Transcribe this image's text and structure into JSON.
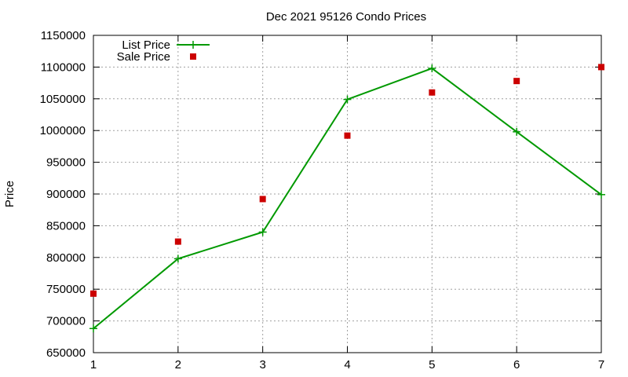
{
  "chart_data": {
    "type": "line",
    "title": "Dec 2021 95126 Condo Prices",
    "xlabel": "",
    "ylabel": "Price",
    "xlim": [
      1,
      7
    ],
    "ylim": [
      650000,
      1150000
    ],
    "x_ticks": [
      1,
      2,
      3,
      4,
      5,
      6,
      7
    ],
    "y_ticks": [
      650000,
      700000,
      750000,
      800000,
      850000,
      900000,
      950000,
      1000000,
      1050000,
      1100000,
      1150000
    ],
    "grid": true,
    "legend_position": "top-left",
    "x": [
      1,
      2,
      3,
      4,
      5,
      6,
      7
    ],
    "series": [
      {
        "name": "List Price",
        "style": "linespoints",
        "color": "#009900",
        "marker": "plus",
        "values": [
          688000,
          798000,
          840000,
          1049000,
          1098000,
          998000,
          899000
        ]
      },
      {
        "name": "Sale Price",
        "style": "points",
        "color": "#cc0000",
        "marker": "square",
        "values": [
          743000,
          825000,
          892000,
          992000,
          1060000,
          1078000,
          1100000
        ]
      }
    ]
  }
}
